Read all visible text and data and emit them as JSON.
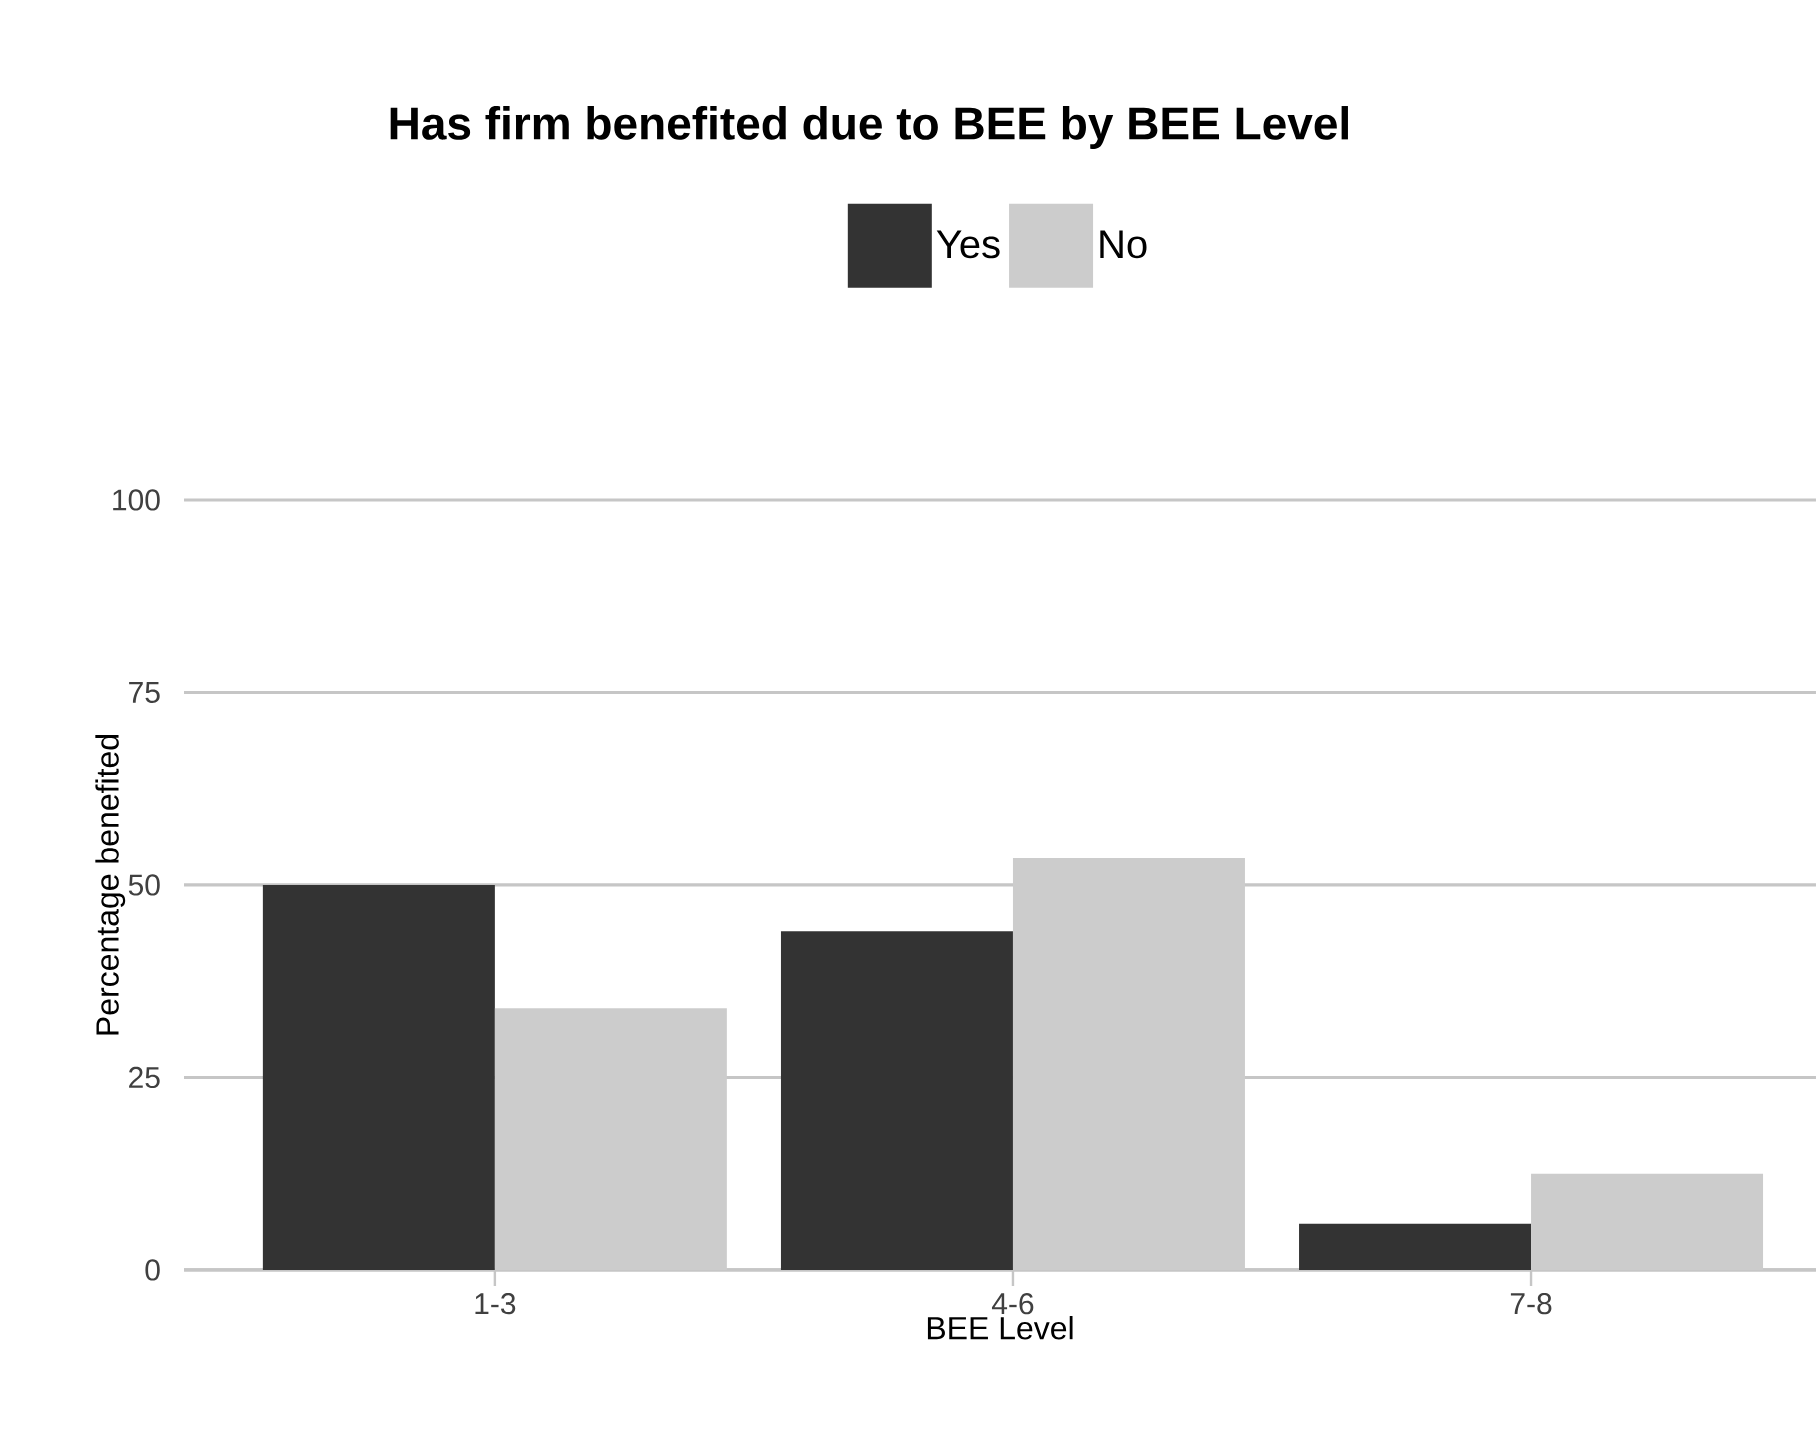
{
  "chart_data": {
    "type": "bar",
    "title": "Has firm benefited due to BEE by BEE Level",
    "xlabel": "BEE Level",
    "ylabel": "Percentage benefited",
    "categories": [
      "1-3",
      "4-6",
      "7-8"
    ],
    "series": [
      {
        "name": "Yes",
        "color": "#333333",
        "values": [
          50,
          44,
          6
        ]
      },
      {
        "name": "No",
        "color": "#cccccc",
        "values": [
          34,
          53.5,
          12.5
        ]
      }
    ],
    "ylim": [
      0,
      100
    ],
    "yticks": [
      0,
      25,
      50,
      75,
      100
    ],
    "grid": "y",
    "legend": "top"
  }
}
